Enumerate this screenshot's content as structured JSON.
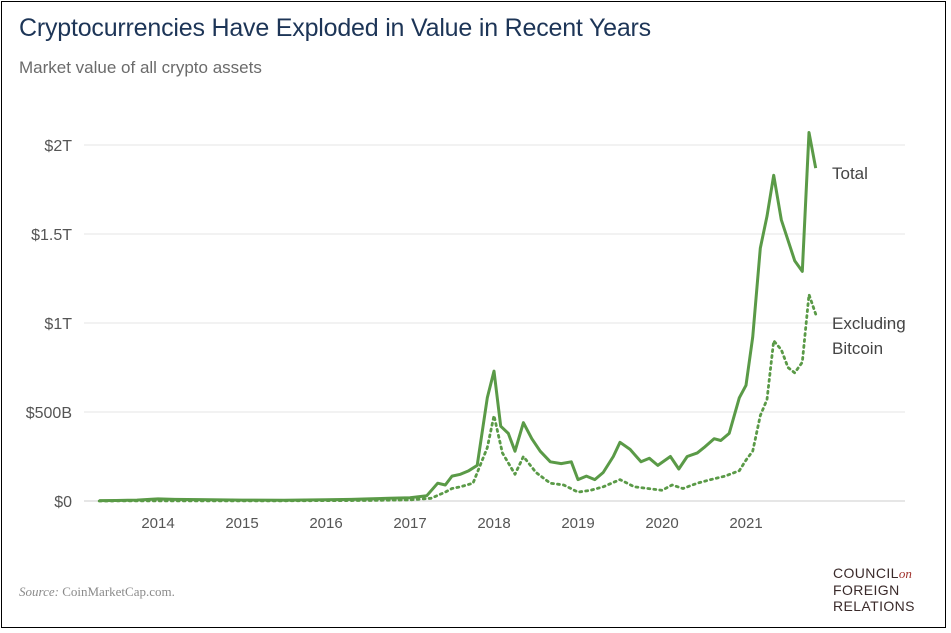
{
  "header": {
    "title": "Cryptocurrencies Have Exploded in Value in Recent Years",
    "subtitle": "Market value of all crypto assets"
  },
  "footer": {
    "source_label": "Source:",
    "source_text": "CoinMarketCap.com.",
    "logo_line1": "COUNCIL",
    "logo_on": "on",
    "logo_line2": "FOREIGN",
    "logo_line3": "RELATIONS"
  },
  "colors": {
    "line": "#5a9a47",
    "grid": "#e6e6e6",
    "axis_text": "#555555",
    "label_text": "#444444"
  },
  "chart_data": {
    "type": "line",
    "title": "Cryptocurrencies Have Exploded in Value in Recent Years",
    "subtitle": "Market value of all crypto assets",
    "xlim": [
      2013.25,
      2022.0
    ],
    "ylim": [
      0,
      2.1
    ],
    "y_ticks": [
      {
        "value": 0,
        "label": "$0"
      },
      {
        "value": 0.5,
        "label": "$500B"
      },
      {
        "value": 1.0,
        "label": "$1T"
      },
      {
        "value": 1.5,
        "label": "$1.5T"
      },
      {
        "value": 2.0,
        "label": "$2T"
      }
    ],
    "x_ticks": [
      {
        "value": 2014,
        "label": "2014"
      },
      {
        "value": 2015,
        "label": "2015"
      },
      {
        "value": 2016,
        "label": "2016"
      },
      {
        "value": 2017,
        "label": "2017"
      },
      {
        "value": 2018,
        "label": "2018"
      },
      {
        "value": 2019,
        "label": "2019"
      },
      {
        "value": 2020,
        "label": "2020"
      },
      {
        "value": 2021,
        "label": "2021"
      }
    ],
    "grid": true,
    "y_unit": "trillions USD",
    "series": [
      {
        "name": "Total",
        "style": "solid",
        "label_lines": [
          "Total"
        ],
        "x": [
          2013.3,
          2013.5,
          2013.75,
          2013.92,
          2014.0,
          2014.2,
          2014.5,
          2014.75,
          2015.0,
          2015.5,
          2016.0,
          2016.3,
          2016.5,
          2016.75,
          2017.0,
          2017.2,
          2017.33,
          2017.42,
          2017.5,
          2017.6,
          2017.7,
          2017.8,
          2017.92,
          2018.0,
          2018.08,
          2018.17,
          2018.25,
          2018.35,
          2018.45,
          2018.55,
          2018.67,
          2018.8,
          2018.92,
          2019.0,
          2019.1,
          2019.2,
          2019.3,
          2019.42,
          2019.5,
          2019.62,
          2019.75,
          2019.85,
          2019.95,
          2020.1,
          2020.2,
          2020.3,
          2020.42,
          2020.5,
          2020.62,
          2020.7,
          2020.8,
          2020.92,
          2021.0,
          2021.08,
          2021.17,
          2021.25,
          2021.33,
          2021.42,
          2021.58,
          2021.67,
          2021.75,
          2021.83
        ],
        "y": [
          0.002,
          0.003,
          0.005,
          0.01,
          0.012,
          0.009,
          0.008,
          0.006,
          0.005,
          0.004,
          0.007,
          0.009,
          0.012,
          0.015,
          0.018,
          0.03,
          0.1,
          0.09,
          0.14,
          0.15,
          0.17,
          0.2,
          0.58,
          0.73,
          0.42,
          0.38,
          0.28,
          0.44,
          0.35,
          0.28,
          0.22,
          0.21,
          0.22,
          0.12,
          0.14,
          0.12,
          0.16,
          0.25,
          0.33,
          0.29,
          0.22,
          0.24,
          0.2,
          0.25,
          0.18,
          0.25,
          0.27,
          0.3,
          0.35,
          0.34,
          0.38,
          0.58,
          0.65,
          0.92,
          1.42,
          1.6,
          1.83,
          1.58,
          1.35,
          1.29,
          2.07,
          1.87
        ]
      },
      {
        "name": "Excluding Bitcoin",
        "style": "dotted",
        "label_lines": [
          "Excluding",
          "Bitcoin"
        ],
        "x": [
          2013.3,
          2013.75,
          2014.0,
          2014.5,
          2015.0,
          2015.5,
          2016.0,
          2016.5,
          2017.0,
          2017.25,
          2017.42,
          2017.5,
          2017.6,
          2017.75,
          2017.92,
          2018.0,
          2018.1,
          2018.25,
          2018.35,
          2018.5,
          2018.67,
          2018.83,
          2019.0,
          2019.15,
          2019.3,
          2019.5,
          2019.67,
          2019.83,
          2020.0,
          2020.12,
          2020.25,
          2020.42,
          2020.58,
          2020.75,
          2020.92,
          2021.0,
          2021.08,
          2021.17,
          2021.25,
          2021.33,
          2021.42,
          2021.5,
          2021.58,
          2021.67,
          2021.75,
          2021.83
        ],
        "y": [
          0.0,
          0.001,
          0.001,
          0.001,
          0.001,
          0.001,
          0.002,
          0.003,
          0.006,
          0.015,
          0.05,
          0.07,
          0.08,
          0.1,
          0.3,
          0.48,
          0.27,
          0.15,
          0.25,
          0.16,
          0.1,
          0.09,
          0.05,
          0.06,
          0.08,
          0.12,
          0.08,
          0.07,
          0.06,
          0.09,
          0.07,
          0.1,
          0.12,
          0.14,
          0.17,
          0.23,
          0.28,
          0.48,
          0.57,
          0.9,
          0.85,
          0.75,
          0.72,
          0.78,
          1.16,
          1.05
        ]
      }
    ]
  }
}
